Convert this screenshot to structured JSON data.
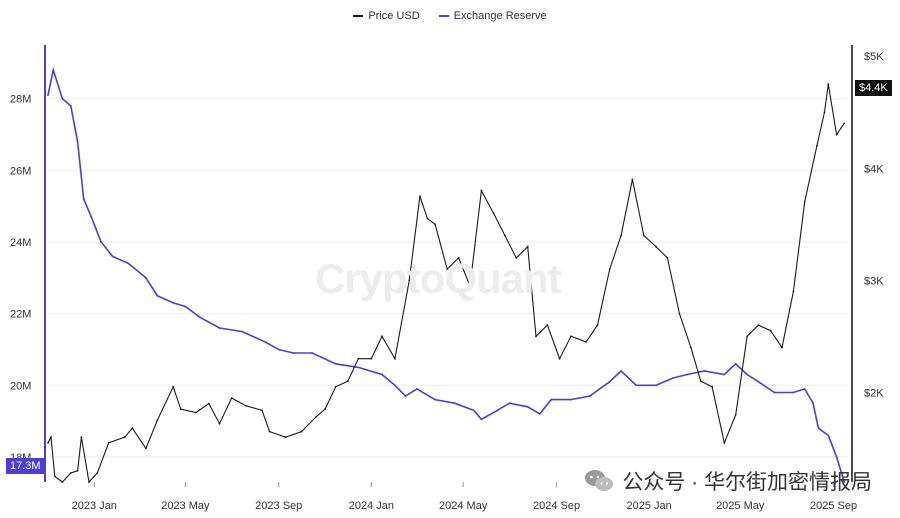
{
  "legend": {
    "price_label": "Price USD",
    "reserve_label": "Exchange Reserve"
  },
  "watermark": "CryptoQuant",
  "source_caption": "公众号 · 华尔街加密情报局",
  "colors": {
    "price": "#1a1a1a",
    "reserve": "#4b3fd6",
    "grid": "#eeeeee",
    "price_badge_bg": "#111111",
    "reserve_badge_bg": "#4b3fd6"
  },
  "badges": {
    "reserve_last": "17.3M",
    "price_last": "$4.4K"
  },
  "chart_data": {
    "type": "line",
    "title": "",
    "x_range": [
      "2022-11-01",
      "2025-09-20"
    ],
    "x_ticks": [
      "2023 Jan",
      "2023 May",
      "2023 Sep",
      "2024 Jan",
      "2024 May",
      "2024 Sep",
      "2025 Jan",
      "2025 May",
      "2025 Sep"
    ],
    "y_left": {
      "label": "",
      "ticks": [
        "18M",
        "20M",
        "22M",
        "24M",
        "26M",
        "28M"
      ],
      "range": [
        17.3,
        29.5
      ]
    },
    "y_right": {
      "label": "",
      "ticks": [
        "$2K",
        "$3K",
        "$4K",
        "$5K"
      ],
      "range": [
        1.2,
        5.1
      ]
    },
    "series": [
      {
        "name": "Exchange Reserve",
        "axis": "left",
        "unit": "M",
        "points": [
          [
            "2022-11-01",
            28.1
          ],
          [
            "2022-11-08",
            28.8
          ],
          [
            "2022-11-20",
            28.0
          ],
          [
            "2022-12-01",
            27.8
          ],
          [
            "2022-12-10",
            26.8
          ],
          [
            "2022-12-18",
            25.2
          ],
          [
            "2022-12-28",
            24.7
          ],
          [
            "2023-01-10",
            24.0
          ],
          [
            "2023-01-25",
            23.6
          ],
          [
            "2023-02-15",
            23.4
          ],
          [
            "2023-03-10",
            23.0
          ],
          [
            "2023-03-25",
            22.5
          ],
          [
            "2023-04-15",
            22.3
          ],
          [
            "2023-05-01",
            22.2
          ],
          [
            "2023-05-20",
            21.9
          ],
          [
            "2023-06-15",
            21.6
          ],
          [
            "2023-07-15",
            21.5
          ],
          [
            "2023-08-15",
            21.2
          ],
          [
            "2023-09-01",
            21.0
          ],
          [
            "2023-09-20",
            20.9
          ],
          [
            "2023-10-15",
            20.9
          ],
          [
            "2023-11-15",
            20.6
          ],
          [
            "2023-12-15",
            20.5
          ],
          [
            "2024-01-15",
            20.3
          ],
          [
            "2024-02-01",
            20.0
          ],
          [
            "2024-02-15",
            19.7
          ],
          [
            "2024-03-01",
            19.9
          ],
          [
            "2024-03-25",
            19.6
          ],
          [
            "2024-04-20",
            19.5
          ],
          [
            "2024-05-15",
            19.3
          ],
          [
            "2024-05-25",
            19.05
          ],
          [
            "2024-06-15",
            19.3
          ],
          [
            "2024-07-01",
            19.5
          ],
          [
            "2024-07-25",
            19.4
          ],
          [
            "2024-08-10",
            19.2
          ],
          [
            "2024-08-25",
            19.6
          ],
          [
            "2024-09-20",
            19.6
          ],
          [
            "2024-10-15",
            19.7
          ],
          [
            "2024-11-10",
            20.1
          ],
          [
            "2024-11-25",
            20.4
          ],
          [
            "2024-12-15",
            20.0
          ],
          [
            "2025-01-10",
            20.0
          ],
          [
            "2025-02-01",
            20.2
          ],
          [
            "2025-02-20",
            20.3
          ],
          [
            "2025-03-15",
            20.4
          ],
          [
            "2025-04-10",
            20.3
          ],
          [
            "2025-04-25",
            20.6
          ],
          [
            "2025-05-10",
            20.3
          ],
          [
            "2025-05-25",
            20.1
          ],
          [
            "2025-06-15",
            19.8
          ],
          [
            "2025-07-10",
            19.8
          ],
          [
            "2025-07-25",
            19.9
          ],
          [
            "2025-08-05",
            19.5
          ],
          [
            "2025-08-12",
            18.8
          ],
          [
            "2025-08-25",
            18.6
          ],
          [
            "2025-09-05",
            18.0
          ],
          [
            "2025-09-15",
            17.3
          ]
        ]
      },
      {
        "name": "Price USD",
        "axis": "right",
        "unit": "$K",
        "points": [
          [
            "2022-11-01",
            1.55
          ],
          [
            "2022-11-05",
            1.6
          ],
          [
            "2022-11-10",
            1.25
          ],
          [
            "2022-11-20",
            1.2
          ],
          [
            "2022-12-01",
            1.28
          ],
          [
            "2022-12-10",
            1.3
          ],
          [
            "2022-12-15",
            1.6
          ],
          [
            "2022-12-25",
            1.2
          ],
          [
            "2023-01-05",
            1.28
          ],
          [
            "2023-01-20",
            1.55
          ],
          [
            "2023-02-10",
            1.6
          ],
          [
            "2023-02-20",
            1.68
          ],
          [
            "2023-03-10",
            1.5
          ],
          [
            "2023-03-25",
            1.75
          ],
          [
            "2023-04-15",
            2.05
          ],
          [
            "2023-04-25",
            1.85
          ],
          [
            "2023-05-15",
            1.82
          ],
          [
            "2023-06-01",
            1.9
          ],
          [
            "2023-06-15",
            1.72
          ],
          [
            "2023-07-01",
            1.95
          ],
          [
            "2023-07-20",
            1.88
          ],
          [
            "2023-08-10",
            1.84
          ],
          [
            "2023-08-20",
            1.65
          ],
          [
            "2023-09-10",
            1.6
          ],
          [
            "2023-10-01",
            1.65
          ],
          [
            "2023-10-20",
            1.78
          ],
          [
            "2023-11-01",
            1.85
          ],
          [
            "2023-11-15",
            2.05
          ],
          [
            "2023-12-01",
            2.1
          ],
          [
            "2023-12-15",
            2.3
          ],
          [
            "2024-01-01",
            2.3
          ],
          [
            "2024-01-15",
            2.5
          ],
          [
            "2024-02-01",
            2.3
          ],
          [
            "2024-02-20",
            3.0
          ],
          [
            "2024-03-05",
            3.75
          ],
          [
            "2024-03-15",
            3.55
          ],
          [
            "2024-03-25",
            3.5
          ],
          [
            "2024-04-10",
            3.1
          ],
          [
            "2024-04-25",
            3.2
          ],
          [
            "2024-05-10",
            2.95
          ],
          [
            "2024-05-25",
            3.8
          ],
          [
            "2024-06-10",
            3.6
          ],
          [
            "2024-06-25",
            3.4
          ],
          [
            "2024-07-10",
            3.2
          ],
          [
            "2024-07-25",
            3.3
          ],
          [
            "2024-08-05",
            2.5
          ],
          [
            "2024-08-20",
            2.6
          ],
          [
            "2024-09-05",
            2.3
          ],
          [
            "2024-09-20",
            2.5
          ],
          [
            "2024-10-10",
            2.45
          ],
          [
            "2024-10-25",
            2.6
          ],
          [
            "2024-11-10",
            3.1
          ],
          [
            "2024-11-25",
            3.4
          ],
          [
            "2024-12-10",
            3.9
          ],
          [
            "2024-12-25",
            3.4
          ],
          [
            "2025-01-10",
            3.3
          ],
          [
            "2025-01-25",
            3.2
          ],
          [
            "2025-02-10",
            2.7
          ],
          [
            "2025-02-25",
            2.4
          ],
          [
            "2025-03-10",
            2.1
          ],
          [
            "2025-03-25",
            2.05
          ],
          [
            "2025-04-10",
            1.55
          ],
          [
            "2025-04-25",
            1.8
          ],
          [
            "2025-05-10",
            2.5
          ],
          [
            "2025-05-25",
            2.6
          ],
          [
            "2025-06-10",
            2.55
          ],
          [
            "2025-06-25",
            2.4
          ],
          [
            "2025-07-10",
            2.9
          ],
          [
            "2025-07-25",
            3.7
          ],
          [
            "2025-08-10",
            4.2
          ],
          [
            "2025-08-20",
            4.5
          ],
          [
            "2025-08-25",
            4.75
          ],
          [
            "2025-09-05",
            4.3
          ],
          [
            "2025-09-15",
            4.4
          ]
        ]
      }
    ]
  }
}
